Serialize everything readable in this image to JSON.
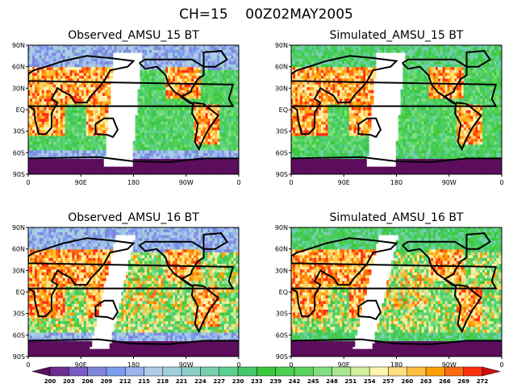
{
  "title": "CH=15    00Z02MAY2005",
  "panels": [
    {
      "title": "Observed_AMSU_15 BT",
      "kind": "obs",
      "gap": "narrow"
    },
    {
      "title": "Simulated_AMSU_15 BT",
      "kind": "sim",
      "gap": "narrow"
    },
    {
      "title": "Observed_AMSU_16 BT",
      "kind": "obs",
      "gap": "wide"
    },
    {
      "title": "Simulated_AMSU_16 BT",
      "kind": "sim",
      "gap": "wide"
    }
  ],
  "y_ticks": [
    "90N",
    "60N",
    "30N",
    "EQ",
    "30S",
    "60S",
    "90S"
  ],
  "x_ticks": [
    "0",
    "90E",
    "180",
    "90W",
    "0"
  ],
  "colorbar": {
    "labels": [
      "200",
      "203",
      "206",
      "209",
      "212",
      "215",
      "218",
      "221",
      "224",
      "227",
      "230",
      "233",
      "239",
      "242",
      "245",
      "248",
      "251",
      "254",
      "257",
      "260",
      "263",
      "266",
      "269",
      "272"
    ],
    "colors": [
      "#6e2d8c",
      "#7a5cc4",
      "#7f86d8",
      "#7c9cf0",
      "#9ab4ee",
      "#b0cce8",
      "#9fd0dc",
      "#8ad0c8",
      "#78d0b0",
      "#5cd090",
      "#46c868",
      "#3cc83c",
      "#4cd050",
      "#5cd460",
      "#80e080",
      "#a8e890",
      "#d0f0a0",
      "#fff4b0",
      "#ffe080",
      "#ffc040",
      "#ffa000",
      "#ff6a10",
      "#ff3010"
    ],
    "under_color": "#5c0d5c",
    "over_color": "#d01010"
  }
}
